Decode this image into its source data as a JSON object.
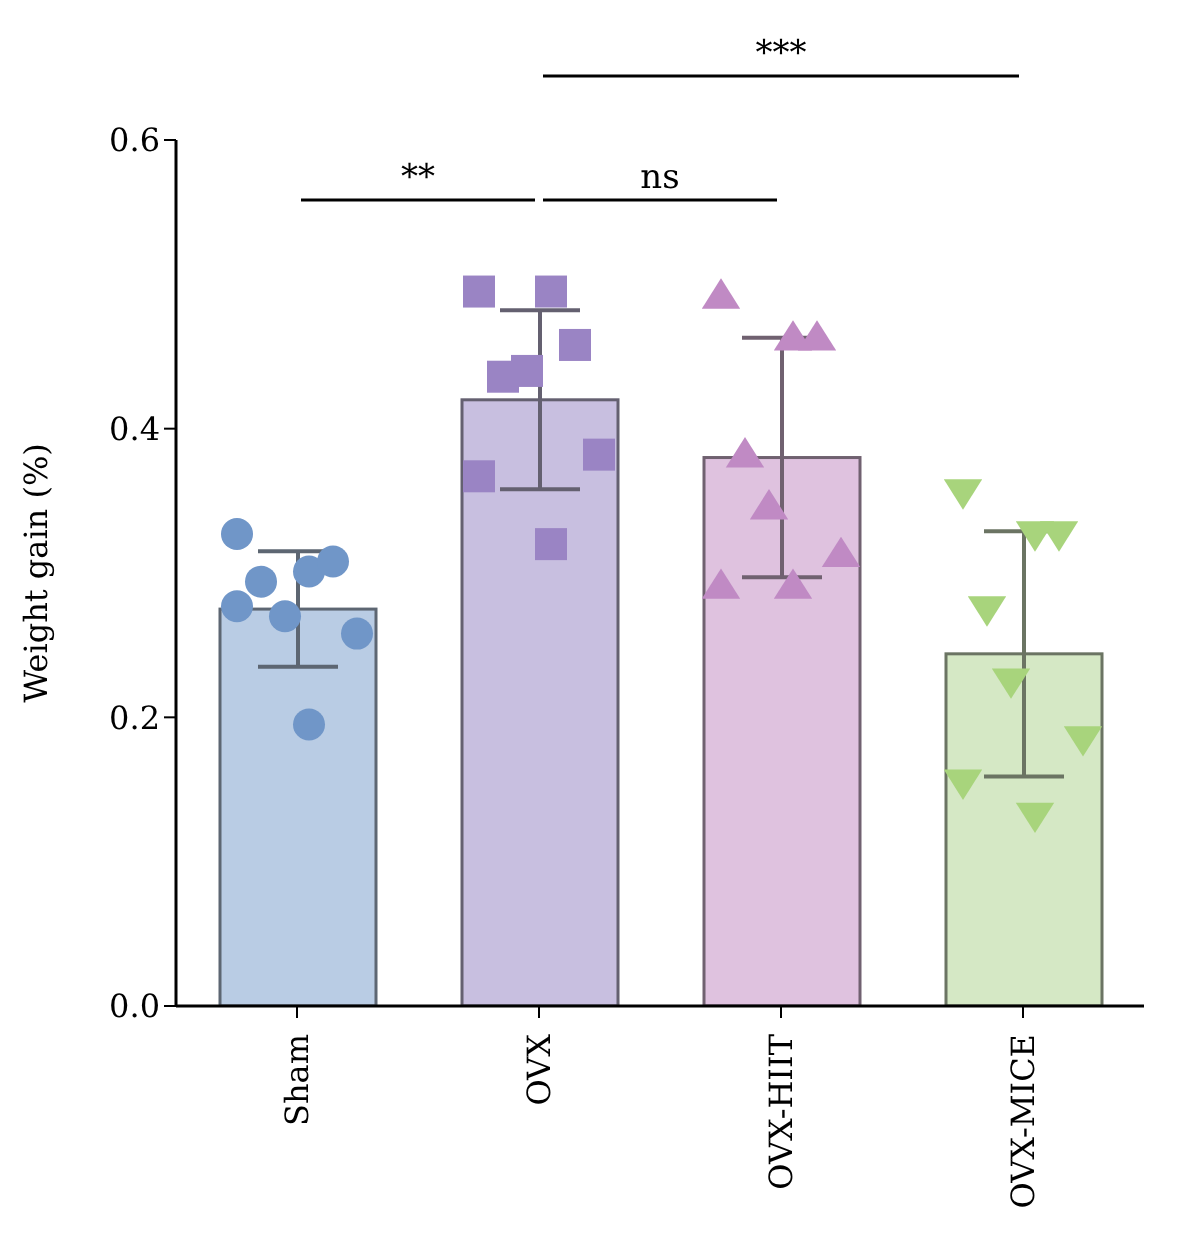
{
  "chart_data": {
    "type": "bar",
    "categories": [
      "Sham",
      "OVX",
      "OVX-HIIT",
      "OVX-MICE"
    ],
    "ylabel": "Weight gain (%)",
    "ylim": [
      0,
      0.6
    ],
    "yticks": [
      {
        "value": 0,
        "label": "0.0"
      },
      {
        "value": 0.2,
        "label": "0.2"
      },
      {
        "value": 0.4,
        "label": "0.4"
      },
      {
        "value": 0.6,
        "label": "0.6"
      }
    ],
    "annotations": [
      "**",
      "ns",
      "***"
    ],
    "series": [
      {
        "values": [
          0.275,
          0.42,
          0.38,
          0.244
        ],
        "colors": [
          "#b9cce4",
          "#c8bfe0",
          "#dfc2df",
          "#d5e8c5"
        ],
        "errors": [
          0.04,
          0.062,
          0.083,
          0.085
        ]
      },
      {
        "type": "scatter",
        "x": [
          "Sham",
          "Sham",
          "Sham",
          "Sham",
          "Sham",
          "Sham",
          "Sham",
          "Sham"
        ],
        "values": [
          0.327,
          0.301,
          0.308,
          0.294,
          0.27,
          0.258,
          0.277,
          0.195
        ],
        "color": "#7096c8",
        "marker": "circle"
      },
      {
        "type": "scatter",
        "x": [
          "OVX",
          "OVX",
          "OVX",
          "OVX",
          "OVX",
          "OVX",
          "OVX",
          "OVX"
        ],
        "values": [
          0.495,
          0.495,
          0.458,
          0.436,
          0.44,
          0.382,
          0.367,
          0.32
        ],
        "color": "#9a84c4",
        "marker": "square"
      },
      {
        "type": "scatter",
        "x": [
          "OVX-HIIT",
          "OVX-HIIT",
          "OVX-HIIT",
          "OVX-HIIT",
          "OVX-HIIT",
          "OVX-HIIT",
          "OVX-HIIT",
          "OVX-HIIT"
        ],
        "values": [
          0.492,
          0.463,
          0.463,
          0.382,
          0.346,
          0.313,
          0.291,
          0.291
        ],
        "color": "#c08ac4",
        "marker": "triangle"
      },
      {
        "type": "scatter",
        "x": [
          "OVX-MICE",
          "OVX-MICE",
          "OVX-MICE",
          "OVX-MICE",
          "OVX-MICE",
          "OVX-MICE",
          "OVX-MICE",
          "OVX-MICE"
        ],
        "values": [
          0.356,
          0.327,
          0.327,
          0.275,
          0.225,
          0.185,
          0.155,
          0.132
        ],
        "color": "#a8d47c",
        "marker": "triangle-down"
      }
    ]
  }
}
